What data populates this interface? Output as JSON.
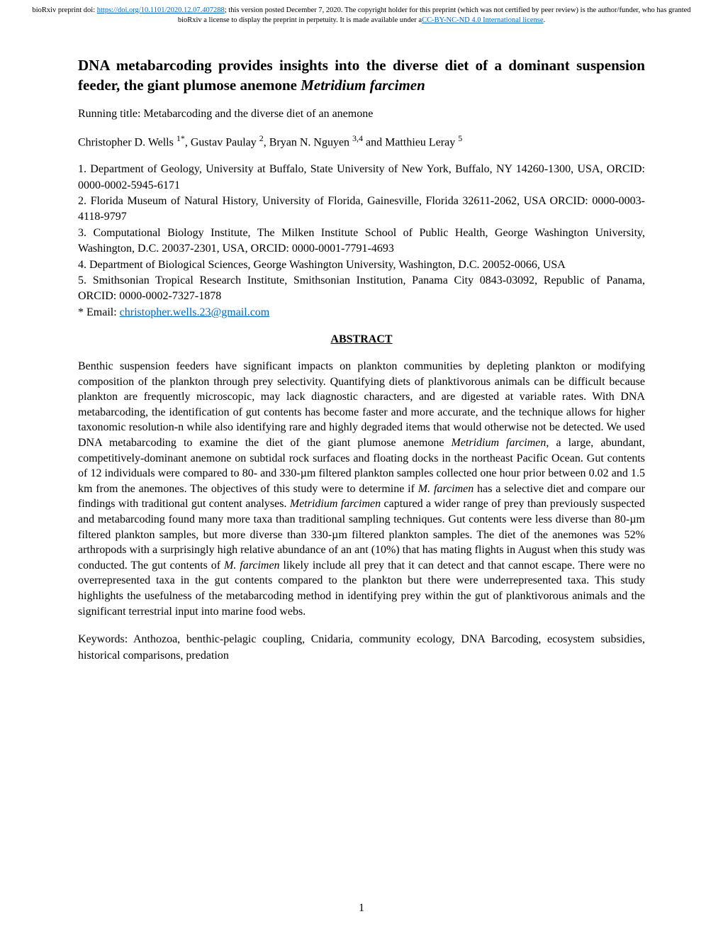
{
  "preprint_banner": {
    "line1_pre": "bioRxiv preprint doi: ",
    "doi_link": "https://doi.org/10.1101/2020.12.07.407288",
    "line1_post": "; this version posted December 7, 2020. The copyright holder for this preprint (which was not certified by peer review) is the author/funder, who has granted bioRxiv a license to display the preprint in perpetuity. It is made available under a",
    "license_link_text": "CC-BY-NC-ND 4.0 International license",
    "line1_end": "."
  },
  "title_part1": "DNA metabarcoding provides insights into the diverse diet of a dominant suspension feeder, the giant plumose anemone ",
  "title_italic": "Metridium farcimen",
  "running_title": "Running title: Metabarcoding and the diverse diet of an anemone",
  "authors_html": "Christopher D. Wells <sup>1*</sup>, Gustav Paulay <sup>2</sup>, Bryan N. Nguyen <sup>3,4</sup> and Matthieu Leray <sup>5</sup>",
  "affiliations": {
    "a1": "1. Department of Geology, University at Buffalo, State University of New York, Buffalo, NY 14260-1300, USA, ORCID: 0000-0002-5945-6171",
    "a2": "2. Florida Museum of Natural History, University of Florida, Gainesville, Florida 32611-2062, USA ORCID: 0000-0003-4118-9797",
    "a3": "3. Computational Biology Institute, The Milken Institute School of Public Health, George Washington University, Washington, D.C. 20037-2301, USA, ORCID: 0000-0001-7791-4693",
    "a4": "4. Department of Biological Sciences, George Washington University, Washington, D.C. 20052-0066, USA",
    "a5": "5. Smithsonian Tropical Research Institute, Smithsonian Institution, Panama City 0843-03092, Republic of Panama, ORCID: 0000-0002-7327-1878",
    "email_label": "* Email: ",
    "email": "christopher.wells.23@gmail.com"
  },
  "abstract_heading": "ABSTRACT",
  "abstract_body": "Benthic suspension feeders have significant impacts on plankton communities by depleting plankton or modifying composition of the plankton through prey selectivity. Quantifying diets of planktivorous animals can be difficult because plankton are frequently microscopic, may lack diagnostic characters, and are digested at variable rates. With DNA metabarcoding, the identification of gut contents has become faster and more accurate, and the technique allows for higher taxonomic resolution-n while also identifying rare and highly degraded items that would otherwise not be detected. We used DNA metabarcoding to examine the diet of the giant plumose anemone <span class=\"italic\">Metridium farcimen</span>, a large, abundant, competitively-dominant anemone on subtidal rock surfaces and floating docks in the northeast Pacific Ocean. Gut contents of 12 individuals were compared to 80- and 330-µm filtered plankton samples collected one hour prior between 0.02 and 1.5 km from the anemones. The objectives of this study were to determine if <span class=\"italic\">M. farcimen</span> has a selective diet and compare our findings with traditional gut content analyses. <span class=\"italic\">Metridium farcimen</span> captured a wider range of prey than previously suspected and metabarcoding found many more taxa than traditional sampling techniques. Gut contents were less diverse than 80-µm filtered plankton samples, but more diverse than 330-µm filtered plankton samples. The diet of the anemones was 52% arthropods with a surprisingly high relative abundance of an ant (10%) that has mating flights in August when this study was conducted. The gut contents of <span class=\"italic\">M. farcimen</span> likely include all prey that it can detect and that cannot escape. There were no overrepresented taxa in the gut contents compared to the plankton but there were underrepresented taxa. This study highlights the usefulness of the metabarcoding method in identifying prey within the gut of planktivorous animals and the significant terrestrial input into marine food webs.",
  "keywords": "Keywords: Anthozoa, benthic-pelagic coupling, Cnidaria, community ecology, DNA Barcoding, ecosystem subsidies, historical comparisons, predation",
  "page_number": "1"
}
